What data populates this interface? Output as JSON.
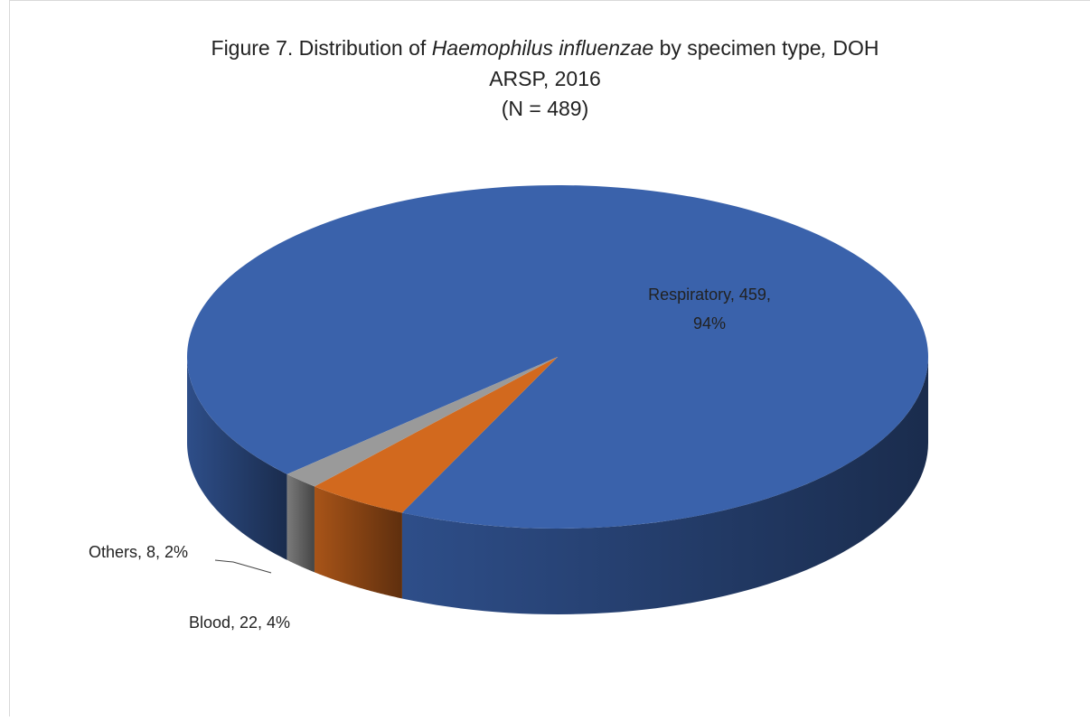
{
  "chart_data": {
    "type": "pie3d",
    "title": [
      "Figure 7. Distribution of ",
      "Haemophilus influenzae",
      " by specimen type",
      ", ",
      "DOH",
      "ARSP, 2016"
    ],
    "subtitle": "(N = 489)",
    "categories": [
      "Respiratory",
      "Blood",
      "Others"
    ],
    "values": [
      459,
      22,
      8
    ],
    "colors": [
      "#3a62ab",
      "#d2691e",
      "#9a9a9a"
    ],
    "data_labels": [
      "Respiratory, 459,",
      "Blood, 22, 4%",
      "Others, 8, 2%"
    ],
    "data_labels_2": "94%"
  }
}
